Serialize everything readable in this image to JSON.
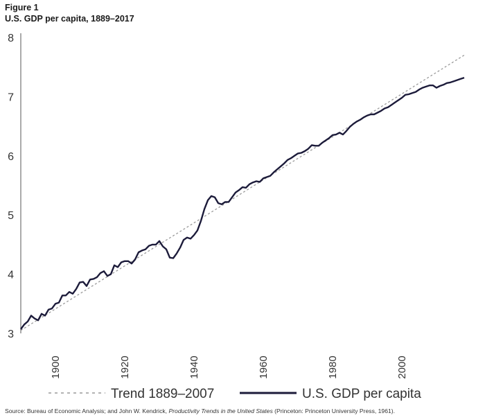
{
  "figure": {
    "label": "Figure 1",
    "title": "U.S. GDP per capita, 1889–2017"
  },
  "source": {
    "prefix": "Source: Bureau of Economic Analysis; and John W. Kendrick, ",
    "book": "Productivity Trends in the United States",
    "suffix": " (Princeton: Princeton University Press, 1961)."
  },
  "colors": {
    "gdp_line": "#1c1b3a",
    "trend_line": "#9a9a9a",
    "axis": "#555555",
    "tick_text": "#333333"
  },
  "chart_data": {
    "type": "line",
    "title": "U.S. GDP per capita, 1889–2017",
    "xlabel": "",
    "ylabel": "",
    "xlim": [
      1889,
      2017
    ],
    "ylim": [
      3,
      8
    ],
    "x_ticks": [
      1900,
      1920,
      1940,
      1960,
      1980,
      2000
    ],
    "y_ticks": [
      3,
      4,
      5,
      6,
      7,
      8
    ],
    "grid": false,
    "legend_position": "bottom",
    "series": [
      {
        "name": "Trend 1889–2007",
        "style": "dashed",
        "x": [
          1889,
          2017
        ],
        "y": [
          3.05,
          7.7
        ]
      },
      {
        "name": "U.S. GDP per capita",
        "style": "solid",
        "x": [
          1889,
          1890,
          1891,
          1892,
          1893,
          1894,
          1895,
          1896,
          1897,
          1898,
          1899,
          1900,
          1901,
          1902,
          1903,
          1904,
          1905,
          1906,
          1907,
          1908,
          1909,
          1910,
          1911,
          1912,
          1913,
          1914,
          1915,
          1916,
          1917,
          1918,
          1919,
          1920,
          1921,
          1922,
          1923,
          1924,
          1925,
          1926,
          1927,
          1928,
          1929,
          1930,
          1931,
          1932,
          1933,
          1934,
          1935,
          1936,
          1937,
          1938,
          1939,
          1940,
          1941,
          1942,
          1943,
          1944,
          1945,
          1946,
          1947,
          1948,
          1949,
          1950,
          1951,
          1952,
          1953,
          1954,
          1955,
          1956,
          1957,
          1958,
          1959,
          1960,
          1961,
          1962,
          1963,
          1964,
          1965,
          1966,
          1967,
          1968,
          1969,
          1970,
          1971,
          1972,
          1973,
          1974,
          1975,
          1976,
          1977,
          1978,
          1979,
          1980,
          1981,
          1982,
          1983,
          1984,
          1985,
          1986,
          1987,
          1988,
          1989,
          1990,
          1991,
          1992,
          1993,
          1994,
          1995,
          1996,
          1997,
          1998,
          1999,
          2000,
          2001,
          2002,
          2003,
          2004,
          2005,
          2006,
          2007,
          2008,
          2009,
          2010,
          2011,
          2012,
          2013,
          2014,
          2015,
          2016,
          2017
        ],
        "y": [
          3.07,
          3.15,
          3.2,
          3.3,
          3.25,
          3.22,
          3.33,
          3.3,
          3.4,
          3.42,
          3.5,
          3.52,
          3.64,
          3.64,
          3.7,
          3.67,
          3.75,
          3.86,
          3.87,
          3.8,
          3.91,
          3.92,
          3.95,
          4.02,
          4.05,
          3.97,
          4.0,
          4.15,
          4.12,
          4.2,
          4.22,
          4.22,
          4.18,
          4.25,
          4.37,
          4.4,
          4.42,
          4.48,
          4.5,
          4.5,
          4.56,
          4.47,
          4.42,
          4.28,
          4.27,
          4.35,
          4.45,
          4.58,
          4.62,
          4.6,
          4.66,
          4.74,
          4.9,
          5.1,
          5.25,
          5.32,
          5.3,
          5.2,
          5.18,
          5.22,
          5.22,
          5.3,
          5.38,
          5.42,
          5.47,
          5.46,
          5.52,
          5.55,
          5.57,
          5.56,
          5.62,
          5.64,
          5.66,
          5.72,
          5.77,
          5.82,
          5.87,
          5.93,
          5.96,
          6.0,
          6.04,
          6.05,
          6.08,
          6.12,
          6.18,
          6.17,
          6.17,
          6.22,
          6.26,
          6.3,
          6.35,
          6.36,
          6.39,
          6.36,
          6.42,
          6.49,
          6.54,
          6.58,
          6.61,
          6.65,
          6.68,
          6.7,
          6.7,
          6.73,
          6.76,
          6.8,
          6.82,
          6.86,
          6.9,
          6.94,
          6.98,
          7.03,
          7.04,
          7.06,
          7.08,
          7.12,
          7.15,
          7.17,
          7.19,
          7.19,
          7.15,
          7.18,
          7.2,
          7.23,
          7.24,
          7.26,
          7.28,
          7.3,
          7.32
        ]
      }
    ]
  }
}
